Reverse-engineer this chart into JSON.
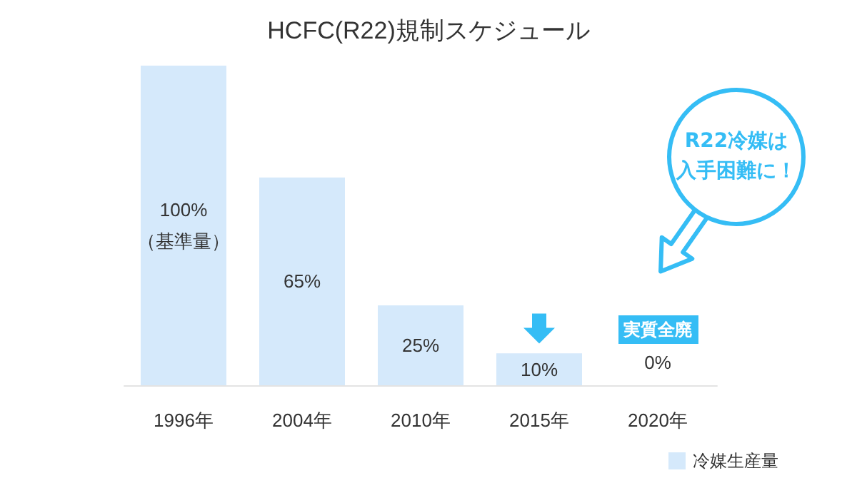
{
  "chart_data": {
    "type": "bar",
    "title": "HCFC(R22)規制スケジュール",
    "categories": [
      "1996年",
      "2004年",
      "2010年",
      "2015年",
      "2020年"
    ],
    "series": [
      {
        "name": "冷媒生産量",
        "color": "#d5e9fb",
        "values": [
          100,
          65,
          25,
          10,
          0
        ],
        "value_labels": [
          "100%\n（基準量）",
          "65%",
          "25%",
          "10%",
          "0%"
        ]
      }
    ],
    "ylim": [
      0,
      100
    ],
    "tick_labels": "x",
    "grid": false,
    "legend": "bottom right",
    "annotations": [
      "実質全廃",
      "R22冷媒は入手困難に！"
    ]
  }
}
